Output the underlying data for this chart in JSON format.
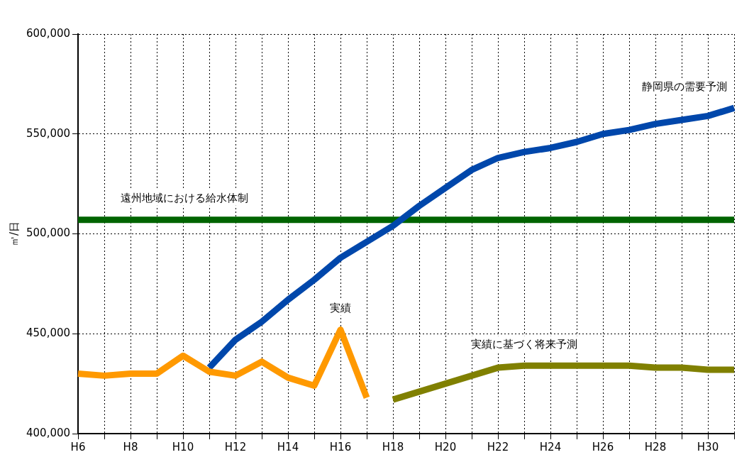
{
  "chart_data": {
    "type": "line",
    "ylabel": "㎥/日",
    "categories": [
      "H6",
      null,
      "H8",
      null,
      "H10",
      null,
      "H12",
      null,
      "H14",
      null,
      "H16",
      null,
      "H18",
      null,
      "H20",
      null,
      "H22",
      null,
      "H24",
      null,
      "H26",
      null,
      "H28",
      null,
      "H30",
      null
    ],
    "series": [
      {
        "name": "実績",
        "color": "#ff9900",
        "values": [
          430000,
          429000,
          430000,
          430000,
          439000,
          431000,
          429000,
          436000,
          428000,
          424000,
          452000,
          418000,
          null,
          null,
          null,
          null,
          null,
          null,
          null,
          null,
          null,
          null,
          null,
          null,
          null,
          null
        ]
      },
      {
        "name": "静岡県の需要予測",
        "color": "#0047ab",
        "values": [
          null,
          null,
          null,
          null,
          null,
          433000,
          447000,
          456000,
          467000,
          477000,
          488000,
          496000,
          504000,
          514000,
          523000,
          532000,
          538000,
          541000,
          543000,
          546000,
          550000,
          552000,
          555000,
          557000,
          559000,
          563000
        ]
      },
      {
        "name": "遠州地域における給水体制",
        "color": "#006400",
        "values": [
          507000,
          507000,
          507000,
          507000,
          507000,
          507000,
          507000,
          507000,
          507000,
          507000,
          507000,
          507000,
          507000,
          507000,
          507000,
          507000,
          507000,
          507000,
          507000,
          507000,
          507000,
          507000,
          507000,
          507000,
          507000,
          507000
        ]
      },
      {
        "name": "実績に基づく将来予測",
        "color": "#808000",
        "values": [
          null,
          null,
          null,
          null,
          null,
          null,
          null,
          null,
          null,
          null,
          null,
          null,
          417000,
          421000,
          425000,
          429000,
          433000,
          434000,
          434000,
          434000,
          434000,
          434000,
          433000,
          433000,
          432000,
          432000
        ]
      }
    ],
    "ylim": [
      400000,
      600000
    ],
    "yticks": [
      {
        "value": 400000,
        "label": "400,000"
      },
      {
        "value": 450000,
        "label": "450,000"
      },
      {
        "value": 500000,
        "label": "500,000"
      },
      {
        "value": 550000,
        "label": "550,000"
      },
      {
        "value": 600000,
        "label": "600,000"
      }
    ],
    "grid": true,
    "legend": false,
    "marker": "none",
    "line_style": "solid"
  }
}
